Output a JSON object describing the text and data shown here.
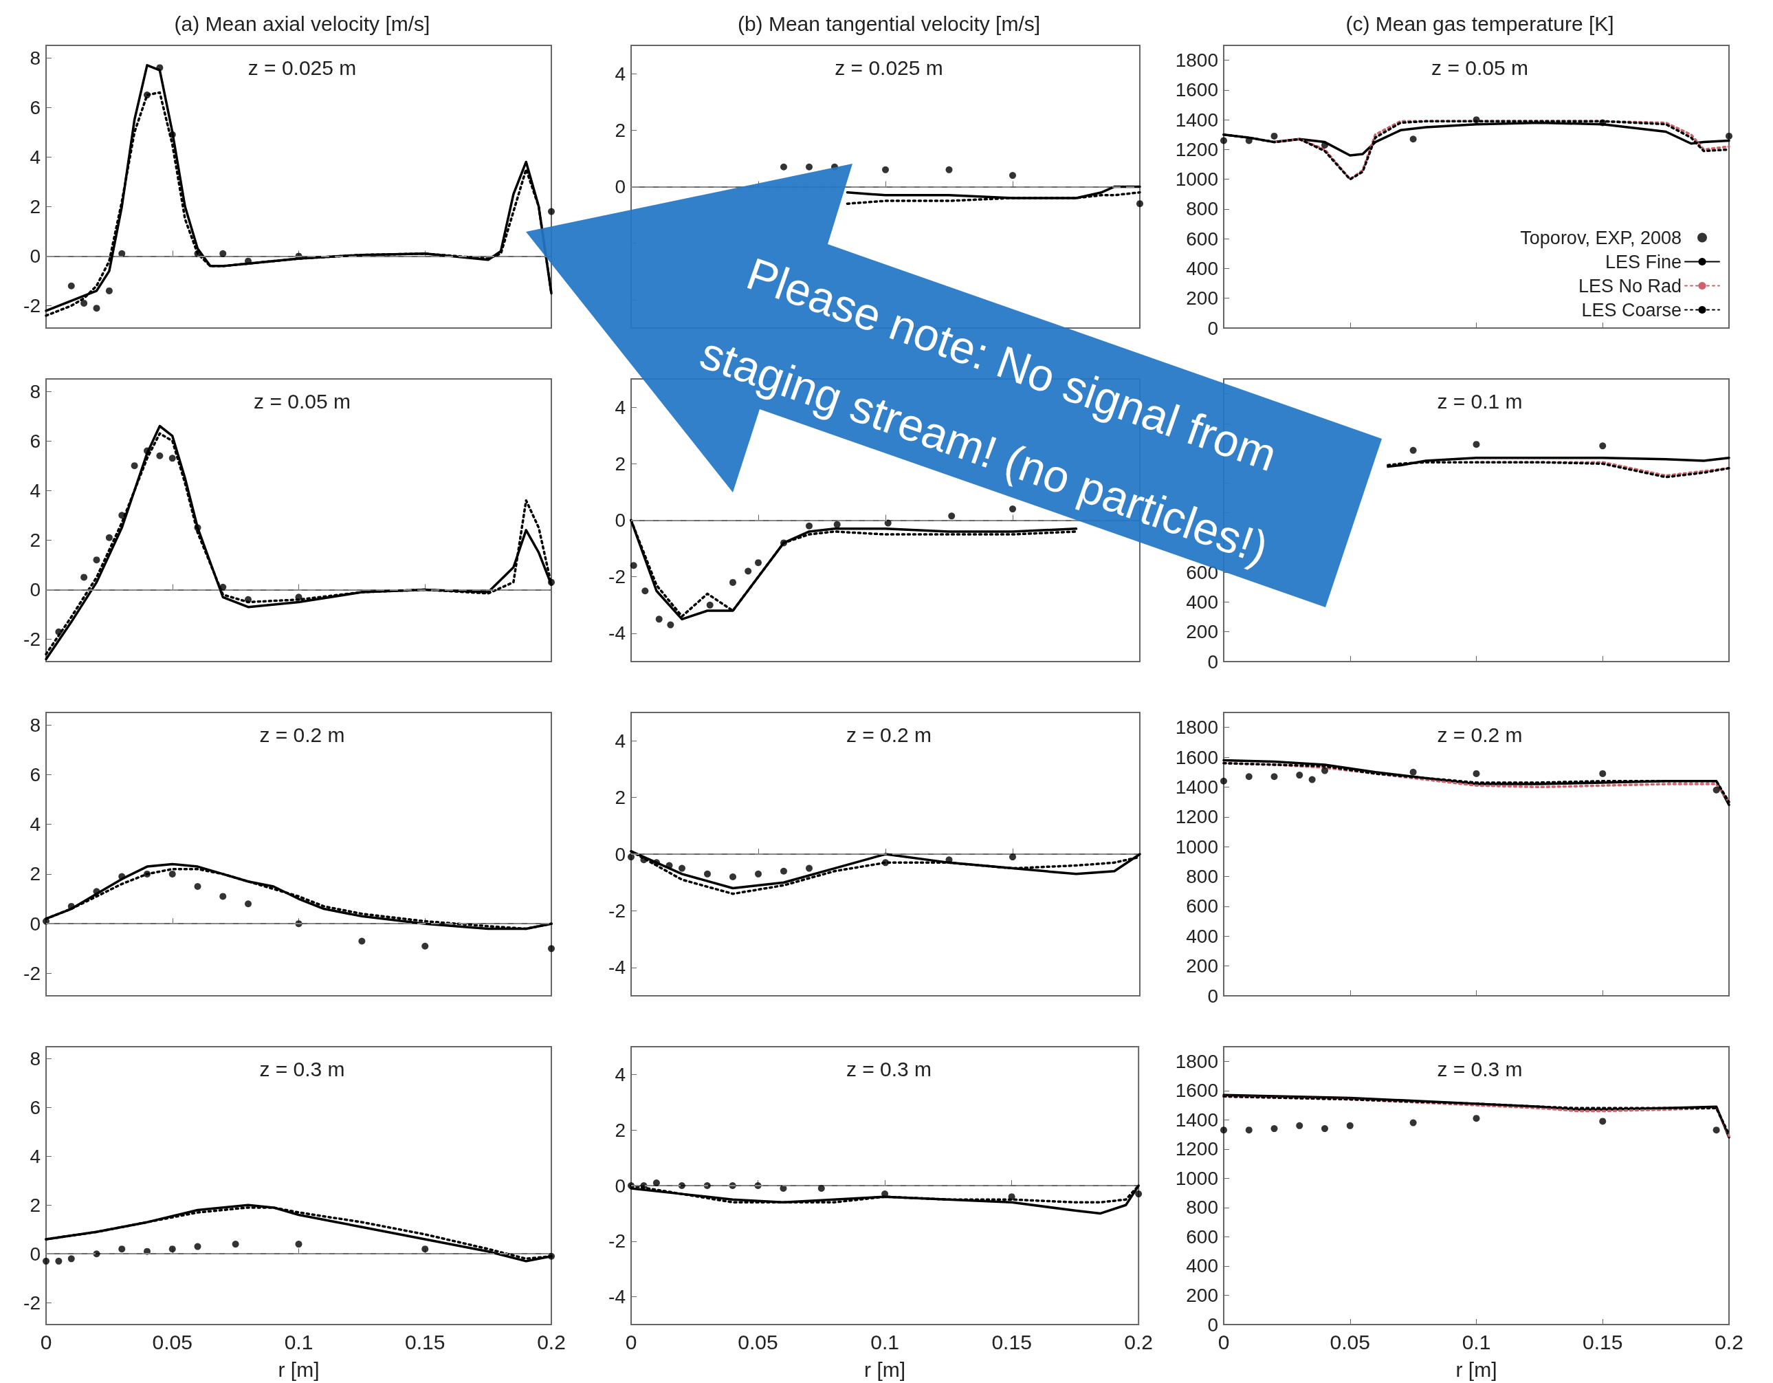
{
  "chart_data": [
    {
      "type": "line",
      "title": "(a) Mean axial velocity [m/s]",
      "subtitle": "z = 0.025 m",
      "xlim": [
        0,
        0.2
      ],
      "ylim": [
        -2.9,
        8.5
      ],
      "xticks": [
        0,
        0.05,
        0.1,
        0.15,
        0.2
      ],
      "yticks": [
        -2,
        0,
        2,
        4,
        6,
        8
      ],
      "tick_labels": "y",
      "grid": false,
      "ref_lines": [
        {
          "axis": "y",
          "value": 0,
          "color": "#888888",
          "line_style": "dashed"
        }
      ],
      "annotations": [
        "Please note: No signal from staging stream! (no particles!)"
      ],
      "series": [
        {
          "type": "scatter",
          "color": "#000000",
          "marker": "circle",
          "x": [
            0.01,
            0.015,
            0.02,
            0.025,
            0.03,
            0.04,
            0.045,
            0.05,
            0.06,
            0.07,
            0.08,
            0.1,
            0.2
          ],
          "values": [
            -1.2,
            -1.9,
            -2.1,
            -1.4,
            0.1,
            6.5,
            7.6,
            4.9,
            0.1,
            0.1,
            -0.2,
            0,
            1.8
          ]
        },
        {
          "type": "line",
          "color": "#000000",
          "marker": "none",
          "line_style": "solid",
          "x": [
            0,
            0.01,
            0.015,
            0.02,
            0.025,
            0.03,
            0.035,
            0.04,
            0.045,
            0.05,
            0.055,
            0.06,
            0.065,
            0.07,
            0.08,
            0.1,
            0.125,
            0.15,
            0.175,
            0.18,
            0.185,
            0.19,
            0.195,
            0.2
          ],
          "values": [
            -2.2,
            -1.8,
            -1.6,
            -1.4,
            -0.6,
            2.0,
            5.5,
            7.7,
            7.5,
            5,
            2,
            0.3,
            -0.4,
            -0.4,
            -0.3,
            -0.1,
            0.05,
            0.1,
            -0.15,
            0.2,
            2.5,
            3.8,
            2.0,
            -1.5
          ]
        },
        {
          "type": "line",
          "color": "#000000",
          "marker": "none",
          "line_style": "dotted",
          "x": [
            0,
            0.01,
            0.015,
            0.02,
            0.025,
            0.03,
            0.035,
            0.04,
            0.045,
            0.05,
            0.055,
            0.06,
            0.065,
            0.07,
            0.08,
            0.1,
            0.125,
            0.15,
            0.175,
            0.18,
            0.185,
            0.19,
            0.195,
            0.2
          ],
          "values": [
            -2.4,
            -2.0,
            -1.7,
            -1.2,
            -0.2,
            2.2,
            5.0,
            6.5,
            6.6,
            4.5,
            1.5,
            0.1,
            -0.4,
            -0.4,
            -0.3,
            -0.1,
            0.05,
            0.1,
            -0.1,
            0.1,
            1.8,
            3.5,
            2.0,
            -1.5
          ]
        }
      ]
    },
    {
      "type": "line",
      "title": "(b) Mean tangential velocity [m/s]",
      "subtitle": "z = 0.025 m",
      "xlim": [
        0,
        0.2
      ],
      "ylim": [
        -5,
        5
      ],
      "xticks": [
        0,
        0.05,
        0.1,
        0.15,
        0.2
      ],
      "yticks": [
        {
          "value": -4,
          "label": null
        },
        {
          "value": -2,
          "label": null
        },
        0,
        2,
        4
      ],
      "tick_labels": "y",
      "grid": false,
      "ref_lines": [
        {
          "axis": "y",
          "value": 0,
          "color": "#888888",
          "line_style": "dashed"
        }
      ],
      "series": [
        {
          "type": "scatter",
          "color": "#000000",
          "marker": "circle",
          "x": [
            0.06,
            0.07,
            0.08,
            0.1,
            0.125,
            0.15,
            0.2
          ],
          "values": [
            0.7,
            0.7,
            0.7,
            0.6,
            0.6,
            0.4,
            -0.6
          ]
        },
        {
          "type": "line",
          "color": "#000000",
          "marker": "none",
          "line_style": "solid",
          "x": [
            0.085,
            0.1,
            0.125,
            0.15,
            0.175,
            0.185,
            0.19,
            0.2
          ],
          "values": [
            -0.2,
            -0.3,
            -0.3,
            -0.4,
            -0.4,
            -0.2,
            0,
            0
          ]
        },
        {
          "type": "line",
          "color": "#000000",
          "marker": "none",
          "line_style": "dotted",
          "x": [
            0.085,
            0.1,
            0.125,
            0.15,
            0.175,
            0.185,
            0.19,
            0.2
          ],
          "values": [
            -0.6,
            -0.5,
            -0.5,
            -0.4,
            -0.4,
            -0.3,
            -0.3,
            -0.2
          ]
        }
      ]
    },
    {
      "type": "line",
      "title": "(c) Mean gas temperature [K]",
      "subtitle": "z = 0.05 m",
      "xlim": [
        0,
        0.2
      ],
      "ylim": [
        0,
        1900
      ],
      "xticks": [
        0,
        0.05,
        0.1,
        0.15,
        0.2
      ],
      "yticks": [
        0,
        200,
        400,
        600,
        800,
        1000,
        1200,
        1400,
        1600,
        1800
      ],
      "tick_labels": "y",
      "grid": false,
      "legend": "bottom right",
      "series": [
        {
          "name": "Toporov, EXP, 2008",
          "type": "scatter",
          "color": "#000000",
          "marker": "circle",
          "x": [
            0,
            0.01,
            0.02,
            0.04,
            0.075,
            0.1,
            0.15,
            0.2
          ],
          "values": [
            1260,
            1260,
            1290,
            1230,
            1270,
            1400,
            1380,
            1290
          ]
        },
        {
          "name": "LES Fine",
          "type": "line",
          "color": "#000000",
          "marker": "none",
          "line_style": "solid",
          "x": [
            0,
            0.01,
            0.02,
            0.03,
            0.04,
            0.05,
            0.055,
            0.06,
            0.07,
            0.08,
            0.1,
            0.125,
            0.15,
            0.175,
            0.185,
            0.19,
            0.2
          ],
          "values": [
            1300,
            1280,
            1250,
            1270,
            1250,
            1160,
            1170,
            1250,
            1330,
            1350,
            1370,
            1380,
            1370,
            1320,
            1240,
            1250,
            1260
          ]
        },
        {
          "name": "LES No Rad",
          "type": "line",
          "color": "#d0606a",
          "marker": "none",
          "line_style": "dotted",
          "x": [
            0.02,
            0.03,
            0.04,
            0.05,
            0.055,
            0.06,
            0.07,
            0.08,
            0.1,
            0.125,
            0.15,
            0.175,
            0.185,
            0.19,
            0.2
          ],
          "values": [
            1250,
            1270,
            1200,
            1000,
            1060,
            1300,
            1390,
            1390,
            1390,
            1390,
            1390,
            1380,
            1300,
            1200,
            1220
          ]
        },
        {
          "name": "LES Coarse",
          "type": "line",
          "color": "#000000",
          "marker": "none",
          "line_style": "dotted",
          "x": [
            0,
            0.01,
            0.02,
            0.03,
            0.04,
            0.05,
            0.055,
            0.06,
            0.07,
            0.08,
            0.1,
            0.125,
            0.15,
            0.175,
            0.185,
            0.19,
            0.2
          ],
          "values": [
            1300,
            1280,
            1250,
            1270,
            1190,
            1000,
            1050,
            1280,
            1380,
            1390,
            1390,
            1390,
            1390,
            1370,
            1280,
            1190,
            1200
          ]
        }
      ]
    },
    {
      "type": "line",
      "subtitle": "z = 0.05 m",
      "xlim": [
        0,
        0.2
      ],
      "ylim": [
        -2.9,
        8.5
      ],
      "xticks": [
        0,
        0.05,
        0.1,
        0.15,
        0.2
      ],
      "yticks": [
        -2,
        0,
        2,
        4,
        6,
        8
      ],
      "tick_labels": "y",
      "grid": false,
      "ref_lines": [
        {
          "axis": "y",
          "value": 0,
          "color": "#888888",
          "line_style": "dashed"
        }
      ],
      "series": [
        {
          "type": "scatter",
          "color": "#000000",
          "marker": "circle",
          "x": [
            0.005,
            0.015,
            0.02,
            0.025,
            0.03,
            0.035,
            0.04,
            0.045,
            0.05,
            0.06,
            0.07,
            0.08,
            0.1,
            0.2
          ],
          "values": [
            -1.7,
            0.5,
            1.2,
            2.1,
            3.0,
            5.0,
            5.6,
            5.4,
            5.3,
            2.5,
            0.1,
            -0.4,
            -0.3,
            0.3
          ]
        },
        {
          "type": "line",
          "color": "#000000",
          "marker": "none",
          "line_style": "solid",
          "x": [
            0,
            0.01,
            0.02,
            0.03,
            0.04,
            0.045,
            0.05,
            0.055,
            0.06,
            0.07,
            0.08,
            0.1,
            0.125,
            0.15,
            0.175,
            0.185,
            0.19,
            0.195,
            0.2
          ],
          "values": [
            -2.8,
            -1.3,
            0.3,
            2.5,
            5.5,
            6.6,
            6.2,
            4.5,
            2.5,
            -0.3,
            -0.7,
            -0.5,
            -0.1,
            0,
            -0.1,
            0.9,
            2.4,
            1.5,
            0.2
          ]
        },
        {
          "type": "line",
          "color": "#000000",
          "marker": "none",
          "line_style": "dotted",
          "x": [
            0,
            0.01,
            0.02,
            0.03,
            0.04,
            0.045,
            0.05,
            0.055,
            0.06,
            0.07,
            0.08,
            0.1,
            0.125,
            0.15,
            0.175,
            0.185,
            0.19,
            0.195,
            0.2
          ],
          "values": [
            -2.6,
            -1.1,
            0.5,
            2.7,
            5.3,
            6.3,
            6.0,
            4.3,
            2.3,
            -0.2,
            -0.5,
            -0.4,
            -0.1,
            0,
            -0.15,
            0.3,
            3.6,
            2.5,
            0.2
          ]
        }
      ]
    },
    {
      "type": "line",
      "xlim": [
        0,
        0.2
      ],
      "ylim": [
        -5,
        5
      ],
      "xticks": [
        0,
        0.05,
        0.1,
        0.15,
        0.2
      ],
      "yticks": [
        -4,
        -2,
        0,
        2,
        4
      ],
      "tick_labels": "y",
      "grid": false,
      "ref_lines": [
        {
          "axis": "y",
          "value": 0,
          "color": "#888888",
          "line_style": "dashed"
        }
      ],
      "series": [
        {
          "type": "scatter",
          "color": "#000000",
          "marker": "circle",
          "x": [
            0.001,
            0.0055,
            0.011,
            0.0155,
            0.031,
            0.04,
            0.046,
            0.05,
            0.06,
            0.07,
            0.081,
            0.101,
            0.126,
            0.15
          ],
          "values": [
            -1.6,
            -2.5,
            -3.5,
            -3.7,
            -3.0,
            -2.2,
            -1.8,
            -1.5,
            -0.8,
            -0.2,
            -0.15,
            -0.1,
            0.15,
            0.4
          ]
        },
        {
          "type": "line",
          "color": "#000000",
          "marker": "none",
          "line_style": "solid",
          "x": [
            0,
            0.01,
            0.02,
            0.03,
            0.04,
            0.05,
            0.06,
            0.07,
            0.08,
            0.1,
            0.125,
            0.15,
            0.175
          ],
          "values": [
            0,
            -2.5,
            -3.5,
            -3.2,
            -3.2,
            -2.0,
            -0.8,
            -0.4,
            -0.3,
            -0.3,
            -0.4,
            -0.4,
            -0.3
          ]
        },
        {
          "type": "line",
          "color": "#000000",
          "marker": "none",
          "line_style": "dotted",
          "x": [
            0,
            0.01,
            0.02,
            0.03,
            0.04,
            0.05,
            0.06,
            0.07,
            0.08,
            0.1,
            0.125,
            0.15,
            0.175
          ],
          "values": [
            0,
            -2.3,
            -3.4,
            -2.6,
            -3.2,
            -2.0,
            -0.8,
            -0.5,
            -0.4,
            -0.5,
            -0.5,
            -0.5,
            -0.4
          ]
        }
      ]
    },
    {
      "type": "line",
      "subtitle": "z = 0.1 m",
      "xlim": [
        0,
        0.2
      ],
      "ylim": [
        0,
        1900
      ],
      "xticks": [
        0,
        0.05,
        0.1,
        0.15,
        0.2
      ],
      "yticks": [
        0,
        200,
        400,
        600,
        {
          "value": 800,
          "label": null
        },
        {
          "value": 1000,
          "label": null
        },
        {
          "value": 1200,
          "label": null
        },
        {
          "value": 1400,
          "label": null
        },
        {
          "value": 1600,
          "label": null
        },
        {
          "value": 1800,
          "label": null
        }
      ],
      "tick_labels": "y",
      "grid": false,
      "series": [
        {
          "type": "scatter",
          "color": "#000000",
          "marker": "circle",
          "x": [
            0.075,
            0.1,
            0.15
          ],
          "values": [
            1420,
            1460,
            1450
          ]
        },
        {
          "type": "line",
          "color": "#000000",
          "marker": "none",
          "line_style": "solid",
          "x": [
            0.065,
            0.07,
            0.08,
            0.1,
            0.125,
            0.15,
            0.175,
            0.19,
            0.2
          ],
          "values": [
            1310,
            1320,
            1350,
            1370,
            1370,
            1370,
            1360,
            1350,
            1370
          ]
        },
        {
          "type": "line",
          "color": "#d0606a",
          "marker": "none",
          "line_style": "dotted",
          "x": [
            0.1,
            0.125,
            0.15,
            0.175,
            0.19,
            0.2
          ],
          "values": [
            1340,
            1340,
            1340,
            1250,
            1280,
            1300
          ]
        },
        {
          "type": "line",
          "color": "#000000",
          "marker": "none",
          "line_style": "dotted",
          "x": [
            0.065,
            0.07,
            0.08,
            0.1,
            0.125,
            0.15,
            0.175,
            0.19,
            0.2
          ],
          "values": [
            1320,
            1330,
            1340,
            1340,
            1340,
            1330,
            1240,
            1270,
            1300
          ]
        }
      ]
    },
    {
      "type": "line",
      "subtitle": "z = 0.2 m",
      "xlim": [
        0,
        0.2
      ],
      "ylim": [
        -2.9,
        8.5
      ],
      "xticks": [
        0,
        0.05,
        0.1,
        0.15,
        0.2
      ],
      "yticks": [
        -2,
        0,
        2,
        4,
        6,
        8
      ],
      "tick_labels": "y",
      "grid": false,
      "ref_lines": [
        {
          "axis": "y",
          "value": 0,
          "color": "#888888",
          "line_style": "dashed"
        }
      ],
      "series": [
        {
          "type": "scatter",
          "color": "#000000",
          "marker": "circle",
          "x": [
            0,
            0.01,
            0.02,
            0.03,
            0.04,
            0.05,
            0.06,
            0.07,
            0.08,
            0.1,
            0.125,
            0.15,
            0.2
          ],
          "values": [
            0.1,
            0.7,
            1.3,
            1.9,
            2.0,
            2.0,
            1.5,
            1.1,
            0.8,
            0,
            -0.7,
            -0.9,
            -1.0
          ]
        },
        {
          "type": "line",
          "color": "#000000",
          "marker": "none",
          "line_style": "solid",
          "x": [
            0,
            0.01,
            0.02,
            0.03,
            0.04,
            0.05,
            0.06,
            0.07,
            0.08,
            0.09,
            0.1,
            0.11,
            0.125,
            0.15,
            0.175,
            0.19,
            0.2
          ],
          "values": [
            0.2,
            0.6,
            1.2,
            1.8,
            2.3,
            2.4,
            2.3,
            2.0,
            1.7,
            1.5,
            1.0,
            0.6,
            0.3,
            0,
            -0.2,
            -0.2,
            0
          ]
        },
        {
          "type": "line",
          "color": "#000000",
          "marker": "none",
          "line_style": "dotted",
          "x": [
            0,
            0.01,
            0.02,
            0.03,
            0.04,
            0.05,
            0.06,
            0.07,
            0.08,
            0.09,
            0.1,
            0.11,
            0.125,
            0.15,
            0.175,
            0.19,
            0.2
          ],
          "values": [
            0.2,
            0.6,
            1.1,
            1.6,
            2.0,
            2.2,
            2.2,
            2.0,
            1.7,
            1.4,
            1.1,
            0.7,
            0.4,
            0.1,
            -0.1,
            -0.2,
            0
          ]
        }
      ]
    },
    {
      "type": "line",
      "subtitle": "z = 0.2 m",
      "xlim": [
        0,
        0.2
      ],
      "ylim": [
        -5,
        5
      ],
      "xticks": [
        0,
        0.05,
        0.1,
        0.15,
        0.2
      ],
      "yticks": [
        -4,
        -2,
        0,
        2,
        4
      ],
      "tick_labels": "y",
      "grid": false,
      "ref_lines": [
        {
          "axis": "y",
          "value": 0,
          "color": "#888888",
          "line_style": "dashed"
        }
      ],
      "series": [
        {
          "type": "scatter",
          "color": "#000000",
          "marker": "circle",
          "x": [
            0,
            0.005,
            0.01,
            0.015,
            0.02,
            0.03,
            0.04,
            0.05,
            0.06,
            0.07,
            0.1,
            0.125,
            0.15
          ],
          "values": [
            -0.1,
            -0.2,
            -0.3,
            -0.4,
            -0.5,
            -0.7,
            -0.8,
            -0.7,
            -0.6,
            -0.5,
            -0.3,
            -0.2,
            -0.1
          ]
        },
        {
          "type": "line",
          "color": "#000000",
          "marker": "none",
          "line_style": "solid",
          "x": [
            0,
            0.02,
            0.04,
            0.06,
            0.08,
            0.1,
            0.125,
            0.15,
            0.175,
            0.19,
            0.2
          ],
          "values": [
            0.1,
            -0.7,
            -1.2,
            -1.0,
            -0.5,
            0,
            -0.3,
            -0.5,
            -0.7,
            -0.6,
            0
          ]
        },
        {
          "type": "line",
          "color": "#000000",
          "marker": "none",
          "line_style": "dotted",
          "x": [
            0,
            0.02,
            0.04,
            0.06,
            0.08,
            0.1,
            0.125,
            0.15,
            0.175,
            0.19,
            0.2
          ],
          "values": [
            0.1,
            -0.9,
            -1.4,
            -1.1,
            -0.6,
            -0.3,
            -0.3,
            -0.5,
            -0.4,
            -0.3,
            -0.1
          ]
        }
      ]
    },
    {
      "type": "line",
      "subtitle": "z = 0.2 m",
      "xlim": [
        0,
        0.2
      ],
      "ylim": [
        0,
        1900
      ],
      "xticks": [
        0,
        0.05,
        0.1,
        0.15,
        0.2
      ],
      "yticks": [
        0,
        200,
        400,
        600,
        800,
        1000,
        1200,
        1400,
        1600,
        1800
      ],
      "tick_labels": "y",
      "grid": false,
      "series": [
        {
          "type": "scatter",
          "color": "#000000",
          "marker": "circle",
          "x": [
            0,
            0.01,
            0.02,
            0.03,
            0.035,
            0.04,
            0.075,
            0.1,
            0.15,
            0.195
          ],
          "values": [
            1440,
            1470,
            1470,
            1480,
            1450,
            1510,
            1500,
            1490,
            1490,
            1380
          ]
        },
        {
          "type": "line",
          "color": "#000000",
          "marker": "none",
          "line_style": "solid",
          "x": [
            0,
            0.02,
            0.04,
            0.06,
            0.08,
            0.1,
            0.125,
            0.15,
            0.175,
            0.195,
            0.2
          ],
          "values": [
            1580,
            1570,
            1550,
            1500,
            1460,
            1420,
            1420,
            1430,
            1440,
            1440,
            1280
          ]
        },
        {
          "type": "line",
          "color": "#d0606a",
          "marker": "none",
          "line_style": "dotted",
          "x": [
            0,
            0.02,
            0.04,
            0.06,
            0.08,
            0.1,
            0.125,
            0.15,
            0.175,
            0.195,
            0.2
          ],
          "values": [
            1560,
            1550,
            1530,
            1490,
            1450,
            1410,
            1400,
            1410,
            1420,
            1420,
            1300
          ]
        },
        {
          "type": "line",
          "color": "#000000",
          "marker": "none",
          "line_style": "dotted",
          "x": [
            0,
            0.02,
            0.04,
            0.06,
            0.08,
            0.1,
            0.125,
            0.15,
            0.175,
            0.195,
            0.2
          ],
          "values": [
            1560,
            1550,
            1540,
            1490,
            1460,
            1430,
            1430,
            1440,
            1440,
            1440,
            1300
          ]
        }
      ]
    },
    {
      "type": "line",
      "subtitle": "z = 0.3 m",
      "xlabel": "r [m]",
      "xlim": [
        0,
        0.2
      ],
      "ylim": [
        -2.9,
        8.5
      ],
      "xticks": [
        0,
        0.05,
        0.1,
        0.15,
        0.2
      ],
      "yticks": [
        -2,
        0,
        2,
        4,
        6,
        8
      ],
      "grid": false,
      "ref_lines": [
        {
          "axis": "y",
          "value": 0,
          "color": "#888888",
          "line_style": "dashed"
        }
      ],
      "series": [
        {
          "type": "scatter",
          "color": "#000000",
          "marker": "circle",
          "x": [
            0,
            0.005,
            0.01,
            0.02,
            0.03,
            0.04,
            0.05,
            0.06,
            0.075,
            0.1,
            0.15,
            0.2
          ],
          "values": [
            -0.3,
            -0.3,
            -0.2,
            0,
            0.2,
            0.1,
            0.2,
            0.3,
            0.4,
            0.4,
            0.2,
            -0.1
          ]
        },
        {
          "type": "line",
          "color": "#000000",
          "marker": "none",
          "line_style": "solid",
          "x": [
            0,
            0.02,
            0.04,
            0.06,
            0.08,
            0.09,
            0.1,
            0.125,
            0.15,
            0.175,
            0.19,
            0.2
          ],
          "values": [
            0.6,
            0.9,
            1.3,
            1.8,
            2.0,
            1.9,
            1.6,
            1.1,
            0.6,
            0.1,
            -0.3,
            -0.1
          ]
        },
        {
          "type": "line",
          "color": "#000000",
          "marker": "none",
          "line_style": "dotted",
          "x": [
            0,
            0.02,
            0.04,
            0.06,
            0.08,
            0.09,
            0.1,
            0.125,
            0.15,
            0.175,
            0.19,
            0.2
          ],
          "values": [
            0.6,
            0.9,
            1.3,
            1.7,
            1.9,
            1.9,
            1.7,
            1.3,
            0.8,
            0.2,
            -0.2,
            -0.1
          ]
        }
      ]
    },
    {
      "type": "line",
      "subtitle": "z = 0.3 m",
      "xlabel": "r [m]",
      "xlim": [
        0,
        0.2
      ],
      "ylim": [
        -5,
        5
      ],
      "xticks": [
        0,
        0.05,
        0.1,
        0.15,
        0.2
      ],
      "yticks": [
        -4,
        -2,
        0,
        2,
        4
      ],
      "grid": false,
      "ref_lines": [
        {
          "axis": "y",
          "value": 0,
          "color": "#888888",
          "line_style": "dashed"
        }
      ],
      "series": [
        {
          "type": "scatter",
          "color": "#000000",
          "marker": "circle",
          "x": [
            0,
            0.005,
            0.01,
            0.02,
            0.03,
            0.04,
            0.05,
            0.06,
            0.075,
            0.1,
            0.15,
            0.2
          ],
          "values": [
            0,
            0,
            0.1,
            0,
            0,
            0,
            0,
            -0.1,
            -0.1,
            -0.3,
            -0.4,
            -0.3
          ]
        },
        {
          "type": "line",
          "color": "#000000",
          "marker": "none",
          "line_style": "solid",
          "x": [
            0,
            0.02,
            0.04,
            0.06,
            0.08,
            0.1,
            0.125,
            0.15,
            0.175,
            0.185,
            0.195,
            0.2
          ],
          "values": [
            -0.1,
            -0.3,
            -0.5,
            -0.6,
            -0.5,
            -0.4,
            -0.5,
            -0.6,
            -0.9,
            -1.0,
            -0.7,
            0
          ]
        },
        {
          "type": "line",
          "color": "#000000",
          "marker": "none",
          "line_style": "dotted",
          "x": [
            0,
            0.02,
            0.04,
            0.06,
            0.08,
            0.1,
            0.125,
            0.15,
            0.175,
            0.185,
            0.195,
            0.2
          ],
          "values": [
            0,
            -0.3,
            -0.6,
            -0.6,
            -0.6,
            -0.4,
            -0.5,
            -0.5,
            -0.6,
            -0.6,
            -0.5,
            0
          ]
        }
      ]
    },
    {
      "type": "line",
      "subtitle": "z = 0.3 m",
      "xlabel": "r [m]",
      "xlim": [
        0,
        0.2
      ],
      "ylim": [
        0,
        1900
      ],
      "xticks": [
        0,
        0.05,
        0.1,
        0.15,
        0.2
      ],
      "yticks": [
        0,
        200,
        400,
        600,
        800,
        1000,
        1200,
        1400,
        1600,
        1800
      ],
      "grid": false,
      "series": [
        {
          "type": "scatter",
          "color": "#000000",
          "marker": "circle",
          "x": [
            0,
            0.01,
            0.02,
            0.03,
            0.04,
            0.05,
            0.075,
            0.1,
            0.15,
            0.195
          ],
          "values": [
            1330,
            1330,
            1340,
            1360,
            1340,
            1360,
            1380,
            1410,
            1390,
            1330
          ]
        },
        {
          "type": "line",
          "color": "#000000",
          "marker": "none",
          "line_style": "solid",
          "x": [
            0,
            0.05,
            0.1,
            0.125,
            0.14,
            0.15,
            0.175,
            0.195,
            0.2
          ],
          "values": [
            1570,
            1550,
            1510,
            1490,
            1470,
            1470,
            1480,
            1490,
            1280
          ]
        },
        {
          "type": "line",
          "color": "#d0606a",
          "marker": "none",
          "line_style": "dotted",
          "x": [
            0,
            0.05,
            0.1,
            0.125,
            0.14,
            0.15,
            0.175,
            0.195,
            0.2
          ],
          "values": [
            1560,
            1540,
            1500,
            1480,
            1460,
            1460,
            1470,
            1480,
            1290
          ]
        },
        {
          "type": "line",
          "color": "#000000",
          "marker": "none",
          "line_style": "dotted",
          "x": [
            0,
            0.05,
            0.1,
            0.125,
            0.14,
            0.15,
            0.175,
            0.195,
            0.2
          ],
          "values": [
            1560,
            1540,
            1510,
            1490,
            1480,
            1480,
            1480,
            1480,
            1300
          ]
        }
      ]
    }
  ]
}
